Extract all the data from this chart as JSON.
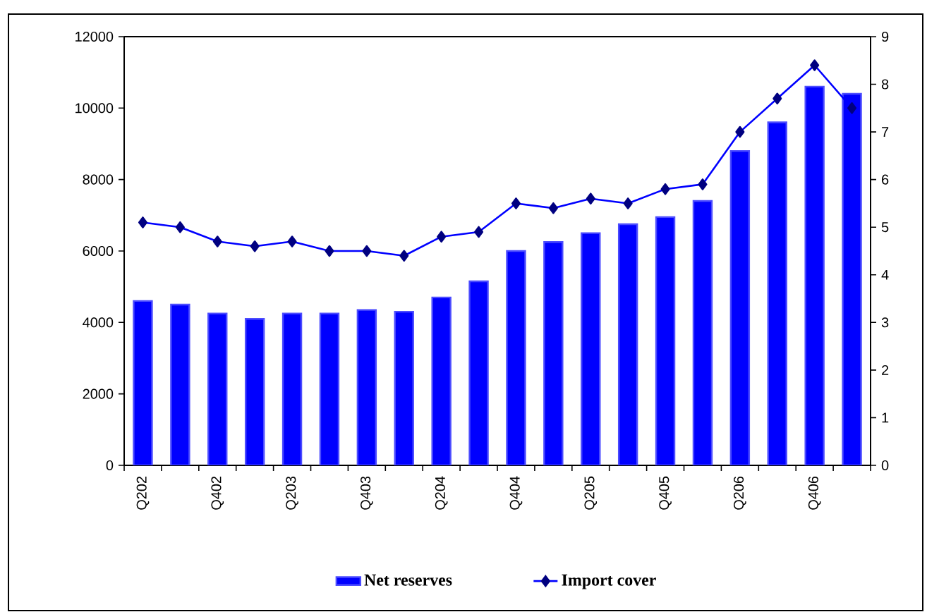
{
  "chart_data": {
    "type": "bar",
    "categories": [
      "Q202",
      null,
      "Q402",
      null,
      "Q203",
      null,
      "Q403",
      null,
      "Q204",
      null,
      "Q404",
      null,
      "Q205",
      null,
      "Q405",
      null,
      "Q206",
      null,
      "Q406",
      null
    ],
    "series": [
      {
        "name": "Net reserves",
        "color": "#0000ff",
        "values": [
          4600,
          4500,
          4250,
          4100,
          4250,
          4250,
          4350,
          4300,
          4700,
          5150,
          6000,
          6250,
          6500,
          6750,
          6950,
          7400,
          8800,
          9600,
          10600,
          10400
        ]
      },
      {
        "name": "Import cover",
        "type": "line",
        "axis": "y2",
        "marker": "diamond",
        "color": "#0000ff",
        "values": [
          5.1,
          5.0,
          4.7,
          4.6,
          4.7,
          4.5,
          4.5,
          4.4,
          4.8,
          4.9,
          5.5,
          5.4,
          5.6,
          5.5,
          5.8,
          5.9,
          7.0,
          7.7,
          8.4,
          7.5
        ]
      }
    ],
    "ylim": [
      0,
      12000
    ],
    "yticks": [
      0,
      2000,
      4000,
      6000,
      8000,
      10000,
      12000
    ],
    "y2lim": [
      0,
      9
    ],
    "y2ticks": [
      0,
      1,
      2,
      3,
      4,
      5,
      6,
      7,
      8,
      9
    ],
    "legend": "bottom"
  }
}
